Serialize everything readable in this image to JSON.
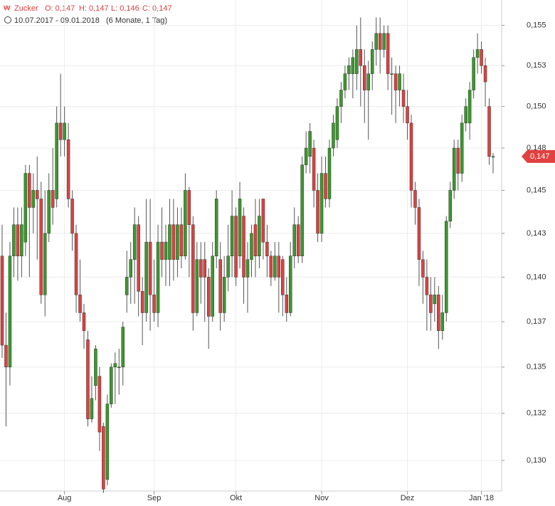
{
  "chart_data": {
    "type": "candlestick",
    "header": {
      "name": "Zucker",
      "fields": [
        "O: 0,147",
        "H: 0,147",
        "L: 0,146",
        "C: 0,147"
      ]
    },
    "subtitle": "10.07.2017 - 09.01.2018",
    "period": "(6 Monate, 1 Tag)",
    "log": true,
    "grid": true,
    "up_color": "#3a9a2a",
    "down_color": "#e04040",
    "ylim": [
      0.1284,
      0.1566
    ],
    "yticks": [
      {
        "value": 0.155,
        "label": "0,155"
      },
      {
        "value": 0.1525,
        "label": "0,153"
      },
      {
        "value": 0.15,
        "label": "0,150"
      },
      {
        "value": 0.1475,
        "label": "0,148"
      },
      {
        "value": 0.145,
        "label": "0,145"
      },
      {
        "value": 0.1425,
        "label": "0,143"
      },
      {
        "value": 0.14,
        "label": "0,140"
      },
      {
        "value": 0.1375,
        "label": "0,137"
      },
      {
        "value": 0.135,
        "label": "0,135"
      },
      {
        "value": 0.1325,
        "label": "0,132"
      },
      {
        "value": 0.13,
        "label": "0,130"
      }
    ],
    "last_price": {
      "value": 0.147,
      "label": "0,147"
    },
    "categories": [
      null,
      null,
      null,
      null,
      null,
      null,
      null,
      null,
      null,
      null,
      null,
      null,
      null,
      null,
      null,
      null,
      "Aug",
      null,
      null,
      null,
      null,
      null,
      null,
      null,
      null,
      null,
      null,
      null,
      null,
      null,
      null,
      null,
      null,
      null,
      null,
      null,
      null,
      null,
      null,
      "Sep",
      null,
      null,
      null,
      null,
      null,
      null,
      null,
      null,
      null,
      null,
      null,
      null,
      null,
      null,
      null,
      null,
      null,
      null,
      null,
      null,
      "Okt",
      null,
      null,
      null,
      null,
      null,
      null,
      null,
      null,
      null,
      null,
      null,
      null,
      null,
      null,
      null,
      null,
      null,
      null,
      null,
      null,
      null,
      "Nov",
      null,
      null,
      null,
      null,
      null,
      null,
      null,
      null,
      null,
      null,
      null,
      null,
      null,
      null,
      null,
      null,
      null,
      null,
      null,
      null,
      null,
      "Dez",
      null,
      null,
      null,
      null,
      null,
      null,
      null,
      null,
      null,
      null,
      null,
      null,
      null,
      null,
      null,
      null,
      null,
      null,
      "Jan '18",
      null,
      null,
      null
    ],
    "open": [
      0.1412,
      0.1362,
      0.135,
      0.1412,
      0.143,
      0.1412,
      0.142,
      0.146,
      0.144,
      0.145,
      0.1445,
      0.139,
      0.1425,
      0.145,
      0.1445,
      0.149,
      0.148,
      0.148,
      0.1445,
      0.1425,
      0.139,
      0.138,
      0.1365,
      0.1322,
      0.134,
      0.1345,
      0.1318,
      0.129,
      0.133,
      0.135,
      0.135,
      0.135,
      0.139,
      0.14,
      0.141,
      0.143,
      0.1392,
      0.138,
      0.142,
      0.139,
      0.138,
      0.142,
      0.141,
      0.141,
      0.143,
      0.141,
      0.143,
      0.1412,
      0.145,
      0.143,
      0.138,
      0.141,
      0.141,
      0.14,
      0.1378,
      0.1412,
      0.141,
      0.138,
      0.14,
      0.1412,
      0.1435,
      0.1412,
      0.1435,
      0.14,
      0.141,
      0.143,
      0.1412,
      0.1445,
      0.142,
      0.1412,
      0.14,
      0.1412,
      0.141,
      0.139,
      0.138,
      0.1412,
      0.143,
      0.1412,
      0.1465,
      0.147,
      0.1475,
      0.145,
      0.1425,
      0.146,
      0.1445,
      0.1475,
      0.148,
      0.15,
      0.151,
      0.152,
      0.152,
      0.152,
      0.1535,
      0.1525,
      0.151,
      0.152,
      0.1535,
      0.1545,
      0.1535,
      0.1545,
      0.152,
      0.152,
      0.151,
      0.151,
      0.15,
      0.149,
      0.145,
      0.144,
      0.141,
      0.14,
      0.139,
      0.1385,
      0.139,
      0.137,
      0.138,
      0.1432,
      0.145,
      0.1475,
      0.146,
      0.149,
      0.149,
      0.151,
      0.153,
      0.1535,
      0.1525,
      0.15,
      0.147
    ],
    "high": [
      0.143,
      0.138,
      0.142,
      0.144,
      0.144,
      0.144,
      0.1465,
      0.1465,
      0.146,
      0.147,
      0.1455,
      0.145,
      0.146,
      0.1475,
      0.15,
      0.152,
      0.15,
      0.149,
      0.145,
      0.143,
      0.141,
      0.1385,
      0.137,
      0.1345,
      0.1362,
      0.135,
      0.132,
      0.1335,
      0.1352,
      0.1358,
      0.136,
      0.1375,
      0.1415,
      0.142,
      0.144,
      0.1435,
      0.14,
      0.1445,
      0.1445,
      0.141,
      0.143,
      0.144,
      0.143,
      0.1445,
      0.1445,
      0.144,
      0.144,
      0.146,
      0.1452,
      0.1435,
      0.142,
      0.142,
      0.142,
      0.1405,
      0.142,
      0.145,
      0.142,
      0.1412,
      0.143,
      0.145,
      0.144,
      0.1455,
      0.144,
      0.142,
      0.143,
      0.1445,
      0.1445,
      0.1445,
      0.143,
      0.1415,
      0.142,
      0.142,
      0.1412,
      0.14,
      0.142,
      0.144,
      0.1435,
      0.147,
      0.1485,
      0.149,
      0.148,
      0.146,
      0.147,
      0.147,
      0.148,
      0.1495,
      0.1505,
      0.1515,
      0.1525,
      0.153,
      0.1535,
      0.155,
      0.1555,
      0.1535,
      0.1528,
      0.154,
      0.1555,
      0.1555,
      0.155,
      0.155,
      0.153,
      0.1525,
      0.1525,
      0.152,
      0.151,
      0.1495,
      0.1455,
      0.1445,
      0.1415,
      0.141,
      0.14,
      0.14,
      0.1395,
      0.139,
      0.1435,
      0.1455,
      0.148,
      0.148,
      0.1495,
      0.1505,
      0.1515,
      0.1535,
      0.1545,
      0.154,
      0.153,
      0.1505,
      0.1472
    ],
    "low": [
      0.1355,
      0.1318,
      0.134,
      0.14,
      0.1398,
      0.14,
      0.1412,
      0.14,
      0.1425,
      0.141,
      0.1385,
      0.1378,
      0.142,
      0.143,
      0.144,
      0.147,
      0.147,
      0.144,
      0.1415,
      0.138,
      0.1375,
      0.136,
      0.1318,
      0.132,
      0.1332,
      0.1305,
      0.1283,
      0.1287,
      0.1328,
      0.133,
      0.1335,
      0.134,
      0.138,
      0.1385,
      0.1385,
      0.1378,
      0.1362,
      0.1375,
      0.137,
      0.1375,
      0.1372,
      0.14,
      0.1395,
      0.1395,
      0.1398,
      0.14,
      0.1405,
      0.141,
      0.14,
      0.137,
      0.1378,
      0.1385,
      0.1375,
      0.136,
      0.1375,
      0.1405,
      0.137,
      0.1375,
      0.1392,
      0.14,
      0.1395,
      0.1405,
      0.1385,
      0.138,
      0.14,
      0.14,
      0.1405,
      0.141,
      0.14,
      0.1395,
      0.1398,
      0.138,
      0.1378,
      0.1375,
      0.1378,
      0.1405,
      0.1408,
      0.1408,
      0.146,
      0.146,
      0.144,
      0.142,
      0.142,
      0.144,
      0.144,
      0.147,
      0.1475,
      0.149,
      0.1505,
      0.151,
      0.1505,
      0.151,
      0.15,
      0.149,
      0.148,
      0.151,
      0.1525,
      0.152,
      0.153,
      0.151,
      0.1495,
      0.149,
      0.15,
      0.149,
      0.148,
      0.144,
      0.143,
      0.1395,
      0.1385,
      0.137,
      0.137,
      0.1375,
      0.136,
      0.1365,
      0.1375,
      0.1428,
      0.1445,
      0.145,
      0.1455,
      0.1485,
      0.148,
      0.1505,
      0.152,
      0.152,
      0.15,
      0.1465,
      0.146
    ],
    "close": [
      0.1362,
      0.135,
      0.1412,
      0.143,
      0.1412,
      0.143,
      0.146,
      0.144,
      0.145,
      0.1445,
      0.139,
      0.1425,
      0.145,
      0.144,
      0.149,
      0.148,
      0.149,
      0.1445,
      0.1425,
      0.139,
      0.138,
      0.137,
      0.1322,
      0.1333,
      0.136,
      0.1315,
      0.1285,
      0.133,
      0.135,
      0.1352,
      0.135,
      0.1372,
      0.14,
      0.141,
      0.143,
      0.1392,
      0.138,
      0.142,
      0.139,
      0.138,
      0.142,
      0.141,
      0.142,
      0.143,
      0.141,
      0.143,
      0.1412,
      0.145,
      0.143,
      0.138,
      0.141,
      0.14,
      0.14,
      0.1378,
      0.1412,
      0.1445,
      0.138,
      0.14,
      0.1412,
      0.1435,
      0.14,
      0.1445,
      0.14,
      0.141,
      0.1425,
      0.1412,
      0.1435,
      0.142,
      0.1412,
      0.14,
      0.1412,
      0.14,
      0.139,
      0.138,
      0.1412,
      0.143,
      0.1412,
      0.1465,
      0.1475,
      0.1485,
      0.145,
      0.1425,
      0.146,
      0.1445,
      0.1475,
      0.149,
      0.15,
      0.151,
      0.152,
      0.1525,
      0.153,
      0.1535,
      0.1525,
      0.151,
      0.152,
      0.1535,
      0.1545,
      0.1535,
      0.1545,
      0.152,
      0.152,
      0.151,
      0.152,
      0.15,
      0.149,
      0.145,
      0.144,
      0.141,
      0.14,
      0.139,
      0.138,
      0.139,
      0.137,
      0.138,
      0.1432,
      0.145,
      0.1475,
      0.146,
      0.149,
      0.15,
      0.151,
      0.153,
      0.1535,
      0.1525,
      0.1515,
      0.147,
      0.147
    ]
  }
}
